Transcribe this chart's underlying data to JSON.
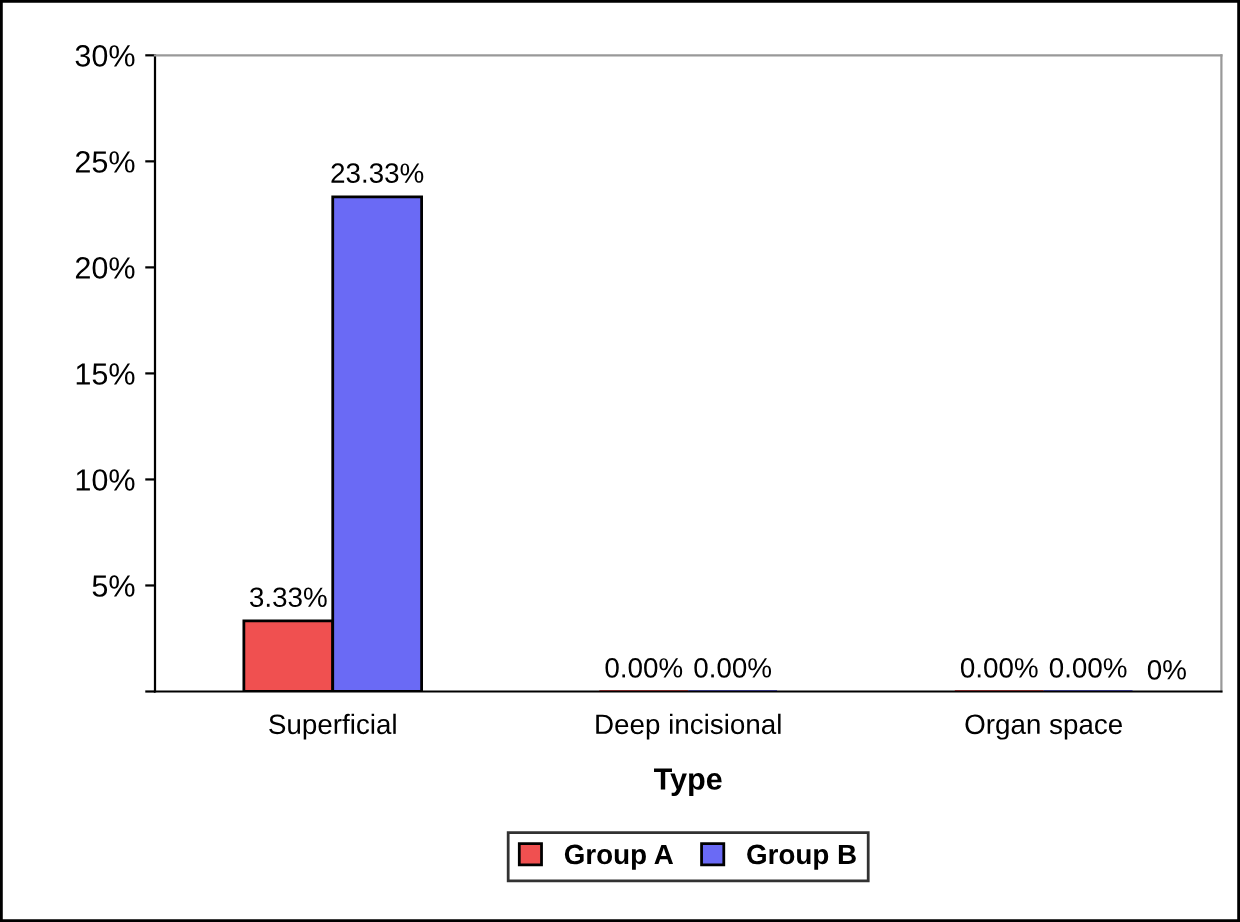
{
  "chart_data": {
    "type": "bar",
    "xlabel": "Type",
    "categories": [
      "Superficial",
      "Deep incisional",
      "Organ space"
    ],
    "series": [
      {
        "name": "Group A",
        "color": "#f05050",
        "values": [
          3.33,
          0,
          0
        ],
        "value_labels": [
          "3.33%",
          "0.00%",
          "0.00%"
        ]
      },
      {
        "name": "Group B",
        "color": "#6a6af5",
        "values": [
          23.33,
          0,
          0
        ],
        "value_labels": [
          "23.33%",
          "0.00%",
          "0.00%"
        ]
      }
    ],
    "ylim": [
      0,
      30
    ],
    "yticks": [
      {
        "value": 0,
        "label": null
      },
      {
        "value": 5,
        "label": "5%"
      },
      {
        "value": 10,
        "label": "10%"
      },
      {
        "value": 15,
        "label": "15%"
      },
      {
        "value": 20,
        "label": "20%"
      },
      {
        "value": 25,
        "label": "25%"
      },
      {
        "value": 30,
        "label": "30%"
      }
    ],
    "annotations": [
      "0%"
    ],
    "grid": false,
    "legend": "bottom"
  }
}
